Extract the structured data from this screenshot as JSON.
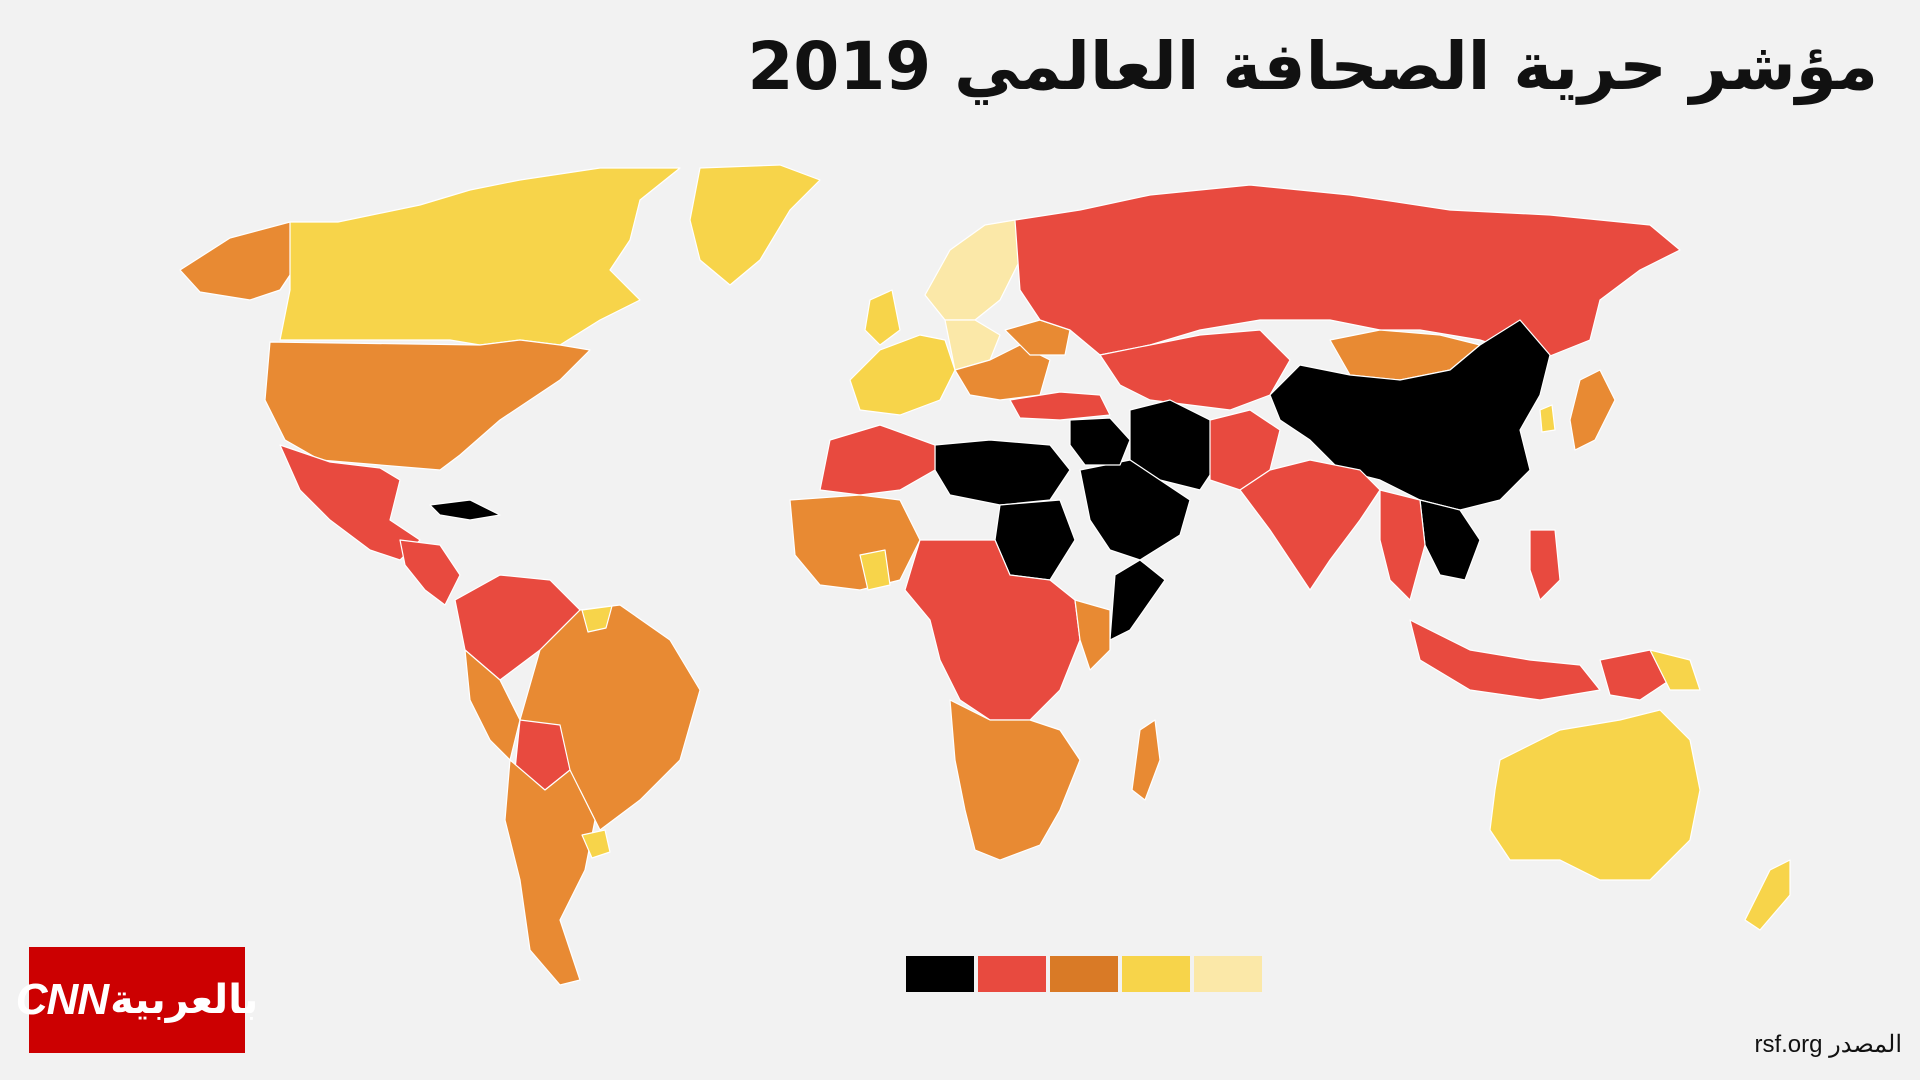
{
  "title": "مؤشر حرية الصحافة العالمي 2019",
  "source": {
    "label": "المصدر",
    "value": "rsf.org"
  },
  "logo": {
    "cnn": "CNN",
    "text": "بالعربية"
  },
  "colors": {
    "background": "#f2f2f2",
    "very_serious": "#000000",
    "difficult": "#e84a3f",
    "problematic": "#e88a33",
    "satisfactory": "#f7d44a",
    "good": "#fbe8a8",
    "logo_red": "#cc0001"
  },
  "legend": [
    {
      "color": "#000000"
    },
    {
      "color": "#e84a3f"
    },
    {
      "color": "#d97a26"
    },
    {
      "color": "#f7d44a"
    },
    {
      "color": "#fbe8a8"
    }
  ]
}
